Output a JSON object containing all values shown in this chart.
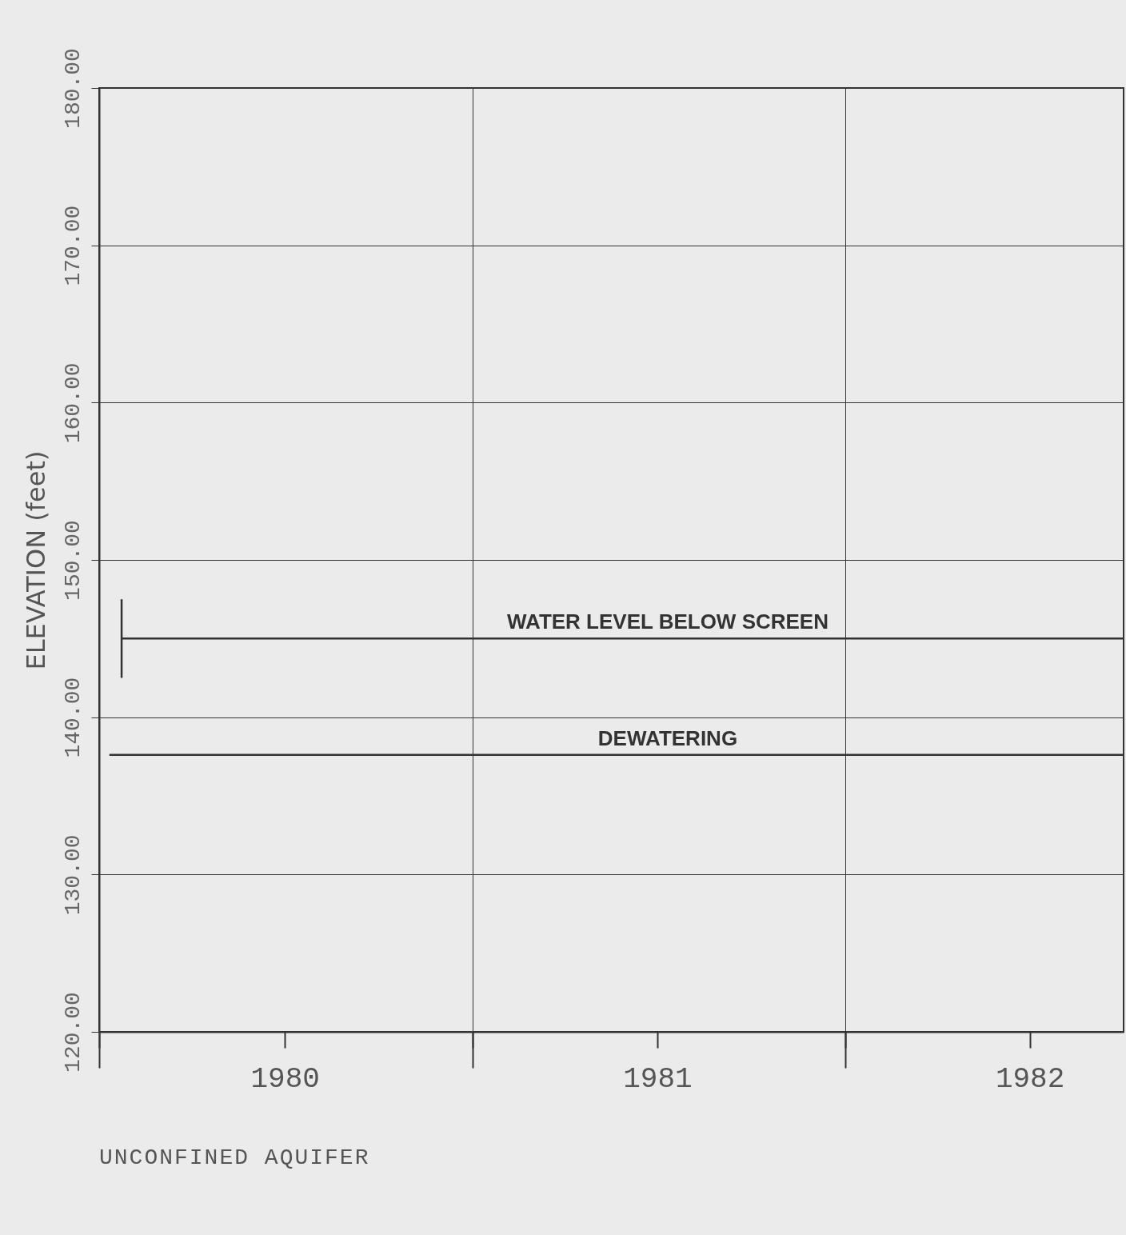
{
  "chart_data": {
    "type": "line",
    "ylabel": "ELEVATION (feet)",
    "xlim": [
      "1980-01-01",
      "1982-10-01"
    ],
    "xticks": [
      {
        "value": "1980-01-01",
        "label": null
      },
      {
        "value": "1980-07-01",
        "label": "1980"
      },
      {
        "value": "1981-01-01",
        "label": null
      },
      {
        "value": "1981-07-01",
        "label": "1981"
      },
      {
        "value": "1982-01-01",
        "label": null
      },
      {
        "value": "1982-07-01",
        "label": "1982"
      }
    ],
    "ylim": [
      120,
      180
    ],
    "yticks": [
      {
        "value": 120,
        "label": "120.00"
      },
      {
        "value": 130,
        "label": "130.00"
      },
      {
        "value": 140,
        "label": "140.00"
      },
      {
        "value": 150,
        "label": "150.00"
      },
      {
        "value": 160,
        "label": "160.00"
      },
      {
        "value": 170,
        "label": "170.00"
      },
      {
        "value": 180,
        "label": "180.00"
      }
    ],
    "grid": true,
    "marker": "none",
    "line_style": "solid",
    "series": [
      {
        "name": "WATER LEVEL BELOW SCREEN",
        "color": "#333333",
        "x": [
          "1980-01-23",
          "1982-10-01"
        ],
        "values": [
          145,
          145
        ],
        "errors": [
          2.5,
          null
        ]
      },
      {
        "name": "DEWATERING",
        "color": "#333333",
        "x": [
          "1980-01-11",
          "1982-10-01"
        ],
        "values": [
          137.6,
          137.6
        ]
      }
    ],
    "annotations": [
      "UNCONFINED AQUIFER"
    ]
  }
}
